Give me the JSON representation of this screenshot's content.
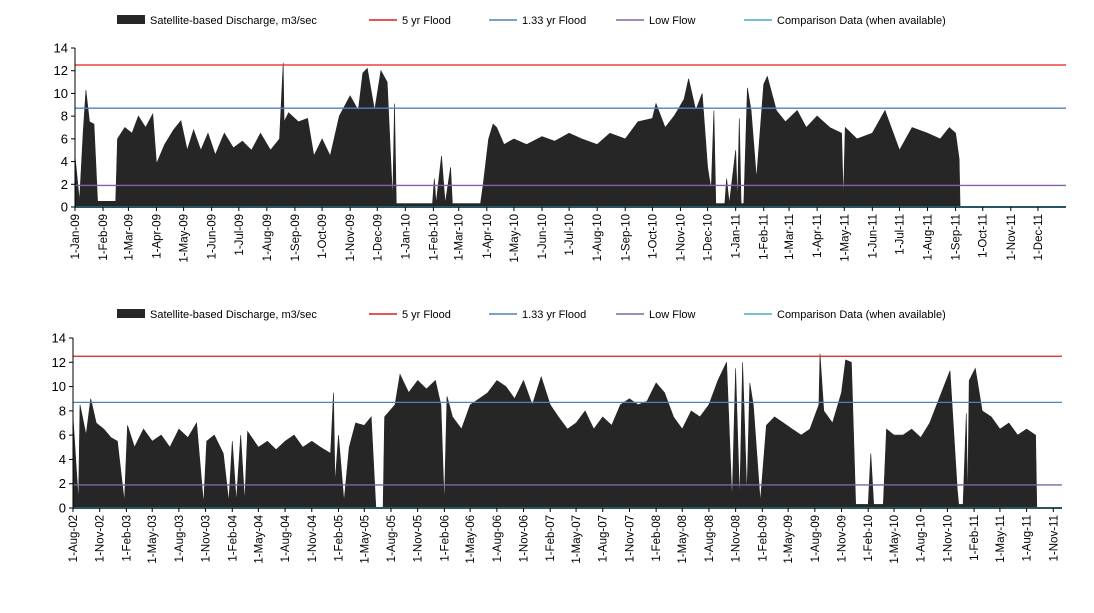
{
  "colors": {
    "discharge": "#262626",
    "flood5": "#e31a1c",
    "flood133": "#4f81bd",
    "lowflow": "#8064a2",
    "comparison": "#4bacc6",
    "axis": "#000000"
  },
  "chart_data": [
    {
      "type": "area",
      "legend_position": "top",
      "legend": [
        {
          "key": "discharge",
          "label": "Satellite-based Discharge, m3/sec"
        },
        {
          "key": "flood5",
          "label": "5 yr Flood"
        },
        {
          "key": "flood133",
          "label": "1.33 yr Flood"
        },
        {
          "key": "lowflow",
          "label": "Low Flow"
        },
        {
          "key": "comparison",
          "label": "Comparison Data (when available)"
        }
      ],
      "ylim": [
        0,
        14
      ],
      "yticks": [
        0,
        2,
        4,
        6,
        8,
        10,
        12,
        14
      ],
      "xlim": [
        "2009-01-01",
        "2012-01-01"
      ],
      "xtick_labels": [
        "1-Jan-09",
        "1-Feb-09",
        "1-Mar-09",
        "1-Apr-09",
        "1-May-09",
        "1-Jun-09",
        "1-Jul-09",
        "1-Aug-09",
        "1-Sep-09",
        "1-Oct-09",
        "1-Nov-09",
        "1-Dec-09",
        "1-Jan-10",
        "1-Feb-10",
        "1-Mar-10",
        "1-Apr-10",
        "1-May-10",
        "1-Jun-10",
        "1-Jul-10",
        "1-Aug-10",
        "1-Sep-10",
        "1-Oct-10",
        "1-Nov-10",
        "1-Dec-10",
        "1-Jan-11",
        "1-Feb-11",
        "1-Mar-11",
        "1-Apr-11",
        "1-May-11",
        "1-Jun-11",
        "1-Jul-11",
        "1-Aug-11",
        "1-Sep-11",
        "1-Oct-11",
        "1-Nov-11",
        "1-Dec-11"
      ],
      "lines": {
        "flood5": 12.5,
        "flood133": 8.7,
        "lowflow": 1.9,
        "comparison": 0
      },
      "discharge_series": [
        [
          "2009-01-01",
          4.5
        ],
        [
          "2009-01-06",
          0.5
        ],
        [
          "2009-01-10",
          6.5
        ],
        [
          "2009-01-13",
          10.3
        ],
        [
          "2009-01-17",
          7.5
        ],
        [
          "2009-01-22",
          7.3
        ],
        [
          "2009-01-26",
          0.5
        ],
        [
          "2009-02-15",
          0.5
        ],
        [
          "2009-02-17",
          6.0
        ],
        [
          "2009-02-25",
          7.0
        ],
        [
          "2009-03-05",
          6.5
        ],
        [
          "2009-03-12",
          8.0
        ],
        [
          "2009-03-20",
          7.0
        ],
        [
          "2009-03-28",
          8.2
        ],
        [
          "2009-04-01",
          3.8
        ],
        [
          "2009-04-10",
          5.5
        ],
        [
          "2009-04-20",
          6.8
        ],
        [
          "2009-04-28",
          7.6
        ],
        [
          "2009-05-05",
          5.0
        ],
        [
          "2009-05-12",
          6.8
        ],
        [
          "2009-05-20",
          5.0
        ],
        [
          "2009-05-28",
          6.5
        ],
        [
          "2009-06-05",
          4.6
        ],
        [
          "2009-06-15",
          6.5
        ],
        [
          "2009-06-25",
          5.2
        ],
        [
          "2009-07-05",
          5.8
        ],
        [
          "2009-07-15",
          5.0
        ],
        [
          "2009-07-25",
          6.5
        ],
        [
          "2009-08-05",
          5.0
        ],
        [
          "2009-08-15",
          6.0
        ],
        [
          "2009-08-19",
          12.7
        ],
        [
          "2009-08-20",
          7.5
        ],
        [
          "2009-08-25",
          8.3
        ],
        [
          "2009-09-05",
          7.5
        ],
        [
          "2009-09-15",
          7.8
        ],
        [
          "2009-09-22",
          4.5
        ],
        [
          "2009-10-01",
          6.0
        ],
        [
          "2009-10-10",
          4.5
        ],
        [
          "2009-10-20",
          8.0
        ],
        [
          "2009-11-01",
          9.8
        ],
        [
          "2009-11-10",
          8.5
        ],
        [
          "2009-11-15",
          11.8
        ],
        [
          "2009-11-20",
          12.2
        ],
        [
          "2009-11-28",
          8.5
        ],
        [
          "2009-12-05",
          12.0
        ],
        [
          "2009-12-12",
          11.0
        ],
        [
          "2009-12-18",
          0.5
        ],
        [
          "2009-12-20",
          9.1
        ],
        [
          "2009-12-22",
          0.3
        ],
        [
          "2010-01-31",
          0.3
        ],
        [
          "2010-02-02",
          2.5
        ],
        [
          "2010-02-04",
          0.3
        ],
        [
          "2010-02-10",
          4.5
        ],
        [
          "2010-02-14",
          0.3
        ],
        [
          "2010-02-20",
          3.5
        ],
        [
          "2010-02-22",
          0.3
        ],
        [
          "2010-03-25",
          0.3
        ],
        [
          "2010-03-28",
          2.0
        ],
        [
          "2010-04-03",
          6.0
        ],
        [
          "2010-04-08",
          7.3
        ],
        [
          "2010-04-12",
          7.0
        ],
        [
          "2010-04-20",
          5.5
        ],
        [
          "2010-05-01",
          6.0
        ],
        [
          "2010-05-15",
          5.5
        ],
        [
          "2010-06-01",
          6.2
        ],
        [
          "2010-06-15",
          5.8
        ],
        [
          "2010-07-01",
          6.5
        ],
        [
          "2010-07-15",
          6.0
        ],
        [
          "2010-08-01",
          5.5
        ],
        [
          "2010-08-15",
          6.5
        ],
        [
          "2010-09-01",
          6.0
        ],
        [
          "2010-09-15",
          7.5
        ],
        [
          "2010-10-01",
          7.8
        ],
        [
          "2010-10-05",
          9.1
        ],
        [
          "2010-10-15",
          7.0
        ],
        [
          "2010-10-25",
          8.0
        ],
        [
          "2010-11-05",
          9.5
        ],
        [
          "2010-11-10",
          11.3
        ],
        [
          "2010-11-18",
          8.5
        ],
        [
          "2010-11-25",
          10.0
        ],
        [
          "2010-12-01",
          3.5
        ],
        [
          "2010-12-05",
          1.5
        ],
        [
          "2010-12-08",
          8.5
        ],
        [
          "2010-12-10",
          0.3
        ],
        [
          "2010-12-20",
          0.3
        ],
        [
          "2010-12-22",
          2.5
        ],
        [
          "2010-12-25",
          0.3
        ],
        [
          "2011-01-01",
          5.0
        ],
        [
          "2011-01-03",
          0.3
        ],
        [
          "2011-01-05",
          7.8
        ],
        [
          "2011-01-07",
          0.3
        ],
        [
          "2011-01-10",
          0.3
        ],
        [
          "2011-01-14",
          10.5
        ],
        [
          "2011-01-18",
          8.5
        ],
        [
          "2011-01-24",
          2.5
        ],
        [
          "2011-02-01",
          10.8
        ],
        [
          "2011-02-05",
          11.5
        ],
        [
          "2011-02-15",
          8.5
        ],
        [
          "2011-02-25",
          7.5
        ],
        [
          "2011-03-10",
          8.5
        ],
        [
          "2011-03-20",
          7.0
        ],
        [
          "2011-04-01",
          8.0
        ],
        [
          "2011-04-15",
          7.0
        ],
        [
          "2011-04-28",
          6.5
        ],
        [
          "2011-04-30",
          0.5
        ],
        [
          "2011-05-02",
          7.0
        ],
        [
          "2011-05-15",
          6.0
        ],
        [
          "2011-06-01",
          6.5
        ],
        [
          "2011-06-15",
          8.5
        ],
        [
          "2011-07-01",
          5.0
        ],
        [
          "2011-07-15",
          7.0
        ],
        [
          "2011-08-01",
          6.5
        ],
        [
          "2011-08-15",
          6.0
        ],
        [
          "2011-08-25",
          7.0
        ],
        [
          "2011-09-01",
          6.5
        ],
        [
          "2011-09-05",
          4.2
        ],
        [
          "2011-09-06",
          0.0
        ]
      ]
    },
    {
      "type": "area",
      "legend_position": "top",
      "legend": [
        {
          "key": "discharge",
          "label": "Satellite-based Discharge, m3/sec"
        },
        {
          "key": "flood5",
          "label": "5 yr Flood"
        },
        {
          "key": "flood133",
          "label": "1.33 yr Flood"
        },
        {
          "key": "lowflow",
          "label": "Low Flow"
        },
        {
          "key": "comparison",
          "label": "Comparison Data (when available)"
        }
      ],
      "ylim": [
        0,
        14
      ],
      "yticks": [
        0,
        2,
        4,
        6,
        8,
        10,
        12,
        14
      ],
      "xlim": [
        "2002-08-01",
        "2011-12-01"
      ],
      "xtick_labels": [
        "1-Aug-02",
        "1-Nov-02",
        "1-Feb-03",
        "1-May-03",
        "1-Aug-03",
        "1-Nov-03",
        "1-Feb-04",
        "1-May-04",
        "1-Aug-04",
        "1-Nov-04",
        "1-Feb-05",
        "1-May-05",
        "1-Aug-05",
        "1-Nov-05",
        "1-Feb-06",
        "1-May-06",
        "1-Aug-06",
        "1-Nov-06",
        "1-Feb-07",
        "1-May-07",
        "1-Aug-07",
        "1-Nov-07",
        "1-Feb-08",
        "1-May-08",
        "1-Aug-08",
        "1-Nov-08",
        "1-Feb-09",
        "1-May-09",
        "1-Aug-09",
        "1-Nov-09",
        "1-Feb-10",
        "1-May-10",
        "1-Aug-10",
        "1-Nov-10",
        "1-Feb-11",
        "1-May-11",
        "1-Aug-11",
        "1-Nov-11"
      ],
      "lines": {
        "flood5": 12.5,
        "flood133": 8.7,
        "lowflow": 1.9,
        "comparison": 0
      },
      "discharge_series": [
        [
          "2002-08-01",
          7.5
        ],
        [
          "2002-08-20",
          0.5
        ],
        [
          "2002-08-25",
          8.5
        ],
        [
          "2002-09-15",
          6.0
        ],
        [
          "2002-10-01",
          9.0
        ],
        [
          "2002-10-20",
          7.0
        ],
        [
          "2002-11-15",
          6.5
        ],
        [
          "2002-12-10",
          5.8
        ],
        [
          "2003-01-01",
          5.5
        ],
        [
          "2003-01-25",
          0.5
        ],
        [
          "2003-02-05",
          6.8
        ],
        [
          "2003-03-01",
          5.0
        ],
        [
          "2003-04-01",
          6.5
        ],
        [
          "2003-05-01",
          5.5
        ],
        [
          "2003-06-01",
          6.0
        ],
        [
          "2003-07-01",
          5.0
        ],
        [
          "2003-08-01",
          6.5
        ],
        [
          "2003-09-01",
          5.8
        ],
        [
          "2003-10-01",
          7.0
        ],
        [
          "2003-10-25",
          0.3
        ],
        [
          "2003-11-05",
          5.5
        ],
        [
          "2003-12-01",
          6.0
        ],
        [
          "2004-01-01",
          4.5
        ],
        [
          "2004-01-20",
          0.5
        ],
        [
          "2004-02-01",
          5.5
        ],
        [
          "2004-02-15",
          0.5
        ],
        [
          "2004-03-01",
          6.0
        ],
        [
          "2004-03-15",
          0.5
        ],
        [
          "2004-03-25",
          6.3
        ],
        [
          "2004-05-01",
          5.0
        ],
        [
          "2004-06-01",
          5.5
        ],
        [
          "2004-07-01",
          4.8
        ],
        [
          "2004-08-01",
          5.5
        ],
        [
          "2004-09-01",
          6.0
        ],
        [
          "2004-10-01",
          5.0
        ],
        [
          "2004-11-01",
          5.5
        ],
        [
          "2004-12-01",
          5.0
        ],
        [
          "2005-01-05",
          4.5
        ],
        [
          "2005-01-15",
          9.5
        ],
        [
          "2005-01-20",
          2.0
        ],
        [
          "2005-02-01",
          6.0
        ],
        [
          "2005-02-20",
          0.5
        ],
        [
          "2005-03-10",
          5.0
        ],
        [
          "2005-04-01",
          7.0
        ],
        [
          "2005-05-01",
          6.8
        ],
        [
          "2005-05-25",
          7.5
        ],
        [
          "2005-06-10",
          0.0
        ],
        [
          "2005-07-05",
          0.0
        ],
        [
          "2005-07-10",
          7.5
        ],
        [
          "2005-08-15",
          8.5
        ],
        [
          "2005-09-01",
          11.0
        ],
        [
          "2005-10-01",
          9.5
        ],
        [
          "2005-11-01",
          10.5
        ],
        [
          "2005-12-01",
          9.8
        ],
        [
          "2006-01-01",
          10.5
        ],
        [
          "2006-01-20",
          8.5
        ],
        [
          "2006-02-01",
          0.3
        ],
        [
          "2006-02-10",
          9.2
        ],
        [
          "2006-03-01",
          7.5
        ],
        [
          "2006-04-01",
          6.5
        ],
        [
          "2006-05-01",
          8.5
        ],
        [
          "2006-06-01",
          9.0
        ],
        [
          "2006-07-01",
          9.5
        ],
        [
          "2006-08-01",
          10.5
        ],
        [
          "2006-09-01",
          10.0
        ],
        [
          "2006-10-01",
          9.0
        ],
        [
          "2006-11-01",
          10.5
        ],
        [
          "2006-12-01",
          8.5
        ],
        [
          "2007-01-01",
          10.8
        ],
        [
          "2007-02-01",
          8.5
        ],
        [
          "2007-03-01",
          7.5
        ],
        [
          "2007-04-01",
          6.5
        ],
        [
          "2007-05-01",
          7.0
        ],
        [
          "2007-06-01",
          8.0
        ],
        [
          "2007-07-01",
          6.5
        ],
        [
          "2007-08-01",
          7.5
        ],
        [
          "2007-09-01",
          6.8
        ],
        [
          "2007-10-01",
          8.5
        ],
        [
          "2007-11-01",
          9.0
        ],
        [
          "2007-12-01",
          8.5
        ],
        [
          "2008-01-01",
          8.8
        ],
        [
          "2008-02-01",
          10.3
        ],
        [
          "2008-03-01",
          9.5
        ],
        [
          "2008-04-01",
          7.5
        ],
        [
          "2008-05-01",
          6.5
        ],
        [
          "2008-06-01",
          8.0
        ],
        [
          "2008-07-01",
          7.5
        ],
        [
          "2008-08-01",
          8.5
        ],
        [
          "2008-09-01",
          10.5
        ],
        [
          "2008-10-01",
          12.0
        ],
        [
          "2008-10-20",
          0.5
        ],
        [
          "2008-11-01",
          11.5
        ],
        [
          "2008-11-15",
          0.5
        ],
        [
          "2008-11-25",
          12.0
        ],
        [
          "2008-12-10",
          1.0
        ],
        [
          "2008-12-20",
          10.3
        ],
        [
          "2009-01-01",
          8.5
        ],
        [
          "2009-01-25",
          0.5
        ],
        [
          "2009-02-15",
          6.8
        ],
        [
          "2009-03-15",
          7.5
        ],
        [
          "2009-04-15",
          7.0
        ],
        [
          "2009-05-15",
          6.5
        ],
        [
          "2009-06-15",
          6.0
        ],
        [
          "2009-07-15",
          6.5
        ],
        [
          "2009-08-15",
          8.5
        ],
        [
          "2009-08-19",
          12.7
        ],
        [
          "2009-09-01",
          8.0
        ],
        [
          "2009-10-01",
          7.0
        ],
        [
          "2009-11-01",
          9.5
        ],
        [
          "2009-11-15",
          12.2
        ],
        [
          "2009-12-05",
          12.0
        ],
        [
          "2009-12-20",
          0.3
        ],
        [
          "2010-02-01",
          0.3
        ],
        [
          "2010-02-10",
          4.5
        ],
        [
          "2010-02-20",
          0.3
        ],
        [
          "2010-03-25",
          0.3
        ],
        [
          "2010-04-05",
          6.5
        ],
        [
          "2010-05-01",
          6.0
        ],
        [
          "2010-06-01",
          6.0
        ],
        [
          "2010-07-01",
          6.5
        ],
        [
          "2010-08-01",
          5.8
        ],
        [
          "2010-09-01",
          7.0
        ],
        [
          "2010-10-05",
          9.1
        ],
        [
          "2010-11-10",
          11.3
        ],
        [
          "2010-12-05",
          1.5
        ],
        [
          "2010-12-10",
          0.3
        ],
        [
          "2010-12-25",
          0.3
        ],
        [
          "2011-01-05",
          7.8
        ],
        [
          "2011-01-10",
          0.3
        ],
        [
          "2011-01-15",
          10.5
        ],
        [
          "2011-02-05",
          11.5
        ],
        [
          "2011-03-01",
          8.0
        ],
        [
          "2011-04-01",
          7.5
        ],
        [
          "2011-05-01",
          6.5
        ],
        [
          "2011-06-01",
          7.0
        ],
        [
          "2011-07-01",
          6.0
        ],
        [
          "2011-08-01",
          6.5
        ],
        [
          "2011-09-01",
          6.0
        ],
        [
          "2011-09-05",
          0.0
        ]
      ]
    }
  ]
}
